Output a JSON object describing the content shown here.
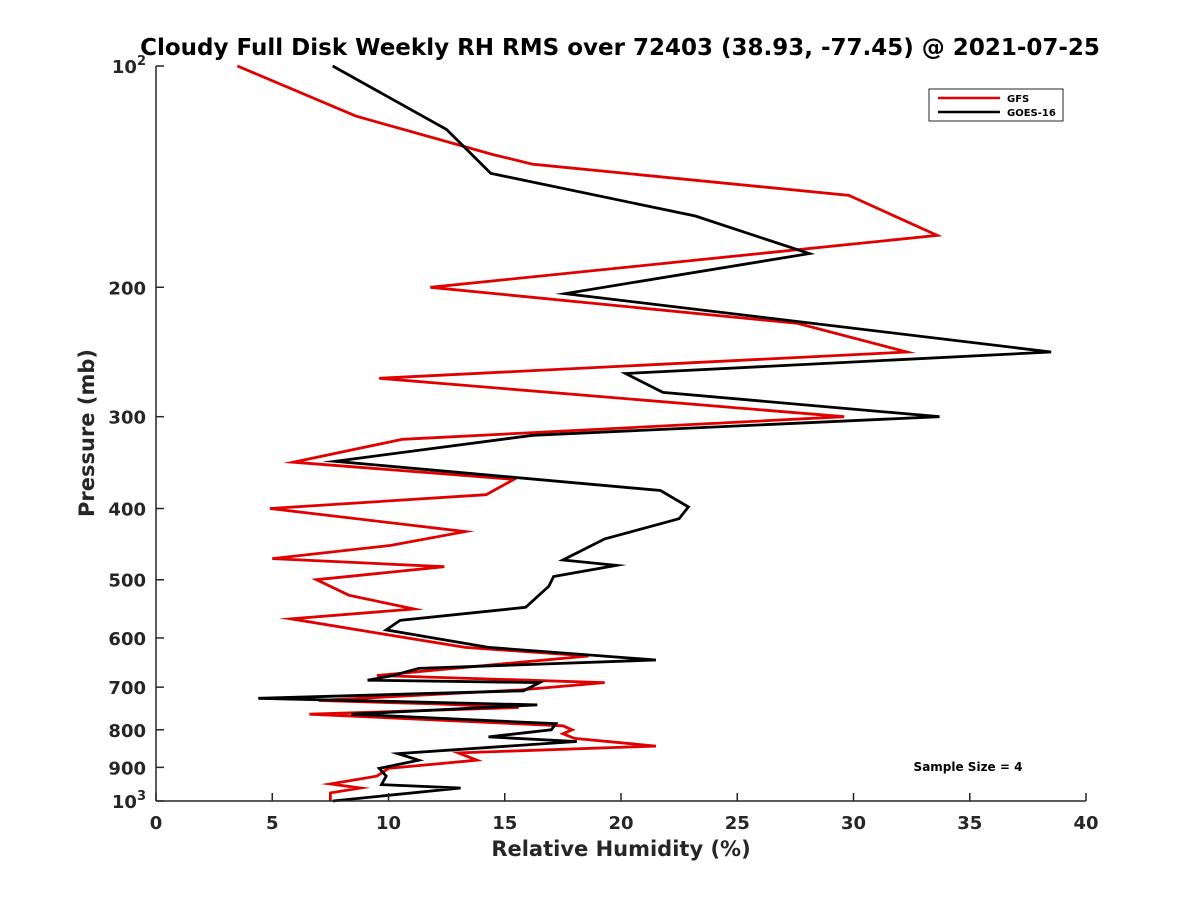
{
  "chart_data": {
    "type": "line",
    "title": "Cloudy Full Disk Weekly RH RMS over 72403 (38.93, -77.45) @ 2021-07-25",
    "xlabel": "Relative Humidity (%)",
    "ylabel": "Pressure (mb)",
    "xlim": [
      0,
      40
    ],
    "ylim": [
      100,
      1000
    ],
    "y_scale": "log",
    "y_reversed": true,
    "x_ticks": [
      0,
      5,
      10,
      15,
      20,
      25,
      30,
      35,
      40
    ],
    "y_ticks": [
      {
        "value": 100,
        "label": "10",
        "sup": "2"
      },
      {
        "value": 200,
        "label": "200",
        "sup": ""
      },
      {
        "value": 300,
        "label": "300",
        "sup": ""
      },
      {
        "value": 400,
        "label": "400",
        "sup": ""
      },
      {
        "value": 500,
        "label": "500",
        "sup": ""
      },
      {
        "value": 600,
        "label": "600",
        "sup": ""
      },
      {
        "value": 700,
        "label": "700",
        "sup": ""
      },
      {
        "value": 800,
        "label": "800",
        "sup": ""
      },
      {
        "value": 900,
        "label": "900",
        "sup": ""
      },
      {
        "value": 1000,
        "label": "10",
        "sup": "3"
      }
    ],
    "grid": false,
    "legend_position": "top-right",
    "annotation": "Sample Size = 4",
    "series": [
      {
        "name": "GFS",
        "color": "#e00000",
        "points": [
          [
            3.5,
            100
          ],
          [
            8.6,
            117
          ],
          [
            14.5,
            132
          ],
          [
            16.2,
            136
          ],
          [
            29.8,
            150
          ],
          [
            33.6,
            170
          ],
          [
            11.8,
            200
          ],
          [
            27.6,
            224
          ],
          [
            32.3,
            245
          ],
          [
            9.6,
            266
          ],
          [
            29.6,
            300
          ],
          [
            10.6,
            322
          ],
          [
            5.9,
            346
          ],
          [
            15.4,
            365
          ],
          [
            14.2,
            383
          ],
          [
            4.9,
            400
          ],
          [
            13.3,
            430
          ],
          [
            10.1,
            449
          ],
          [
            5.0,
            468
          ],
          [
            12.4,
            480
          ],
          [
            6.9,
            500
          ],
          [
            8.3,
            525
          ],
          [
            11.1,
            548
          ],
          [
            5.8,
            565
          ],
          [
            9.4,
            590
          ],
          [
            13.3,
            618
          ],
          [
            18.6,
            635
          ],
          [
            9.5,
            675
          ],
          [
            19.3,
            690
          ],
          [
            15.7,
            706
          ],
          [
            7.0,
            730
          ],
          [
            12.2,
            738
          ],
          [
            15.6,
            746
          ],
          [
            6.6,
            762
          ],
          [
            17.5,
            790
          ],
          [
            17.9,
            800
          ],
          [
            17.5,
            810
          ],
          [
            18.0,
            822
          ],
          [
            21.5,
            842
          ],
          [
            13.0,
            860
          ],
          [
            13.8,
            880
          ],
          [
            10.0,
            903
          ],
          [
            9.5,
            925
          ],
          [
            7.5,
            948
          ],
          [
            8.8,
            960
          ],
          [
            7.5,
            975
          ],
          [
            7.5,
            1000
          ]
        ]
      },
      {
        "name": "GOES-16",
        "color": "#000000",
        "points": [
          [
            7.6,
            100
          ],
          [
            12.5,
            122
          ],
          [
            14.4,
            140
          ],
          [
            23.2,
            160
          ],
          [
            28.1,
            180
          ],
          [
            17.6,
            204
          ],
          [
            38.5,
            245
          ],
          [
            20.2,
            262
          ],
          [
            21.8,
            278
          ],
          [
            33.7,
            300
          ],
          [
            16.2,
            318
          ],
          [
            7.7,
            345
          ],
          [
            21.7,
            378
          ],
          [
            22.9,
            398
          ],
          [
            22.5,
            413
          ],
          [
            19.3,
            440
          ],
          [
            17.5,
            470
          ],
          [
            19.8,
            478
          ],
          [
            17.1,
            495
          ],
          [
            16.9,
            510
          ],
          [
            15.9,
            545
          ],
          [
            10.5,
            568
          ],
          [
            9.9,
            585
          ],
          [
            14.3,
            618
          ],
          [
            21.5,
            643
          ],
          [
            11.3,
            660
          ],
          [
            10.2,
            675
          ],
          [
            9.1,
            685
          ],
          [
            16.5,
            690
          ],
          [
            15.8,
            708
          ],
          [
            4.4,
            725
          ],
          [
            16.4,
            740
          ],
          [
            8.4,
            762
          ],
          [
            17.2,
            785
          ],
          [
            17.0,
            800
          ],
          [
            14.3,
            818
          ],
          [
            18.1,
            830
          ],
          [
            10.4,
            862
          ],
          [
            11.3,
            880
          ],
          [
            9.6,
            903
          ],
          [
            9.9,
            925
          ],
          [
            9.7,
            950
          ],
          [
            13.1,
            960
          ],
          [
            7.6,
            1000
          ]
        ]
      }
    ]
  }
}
